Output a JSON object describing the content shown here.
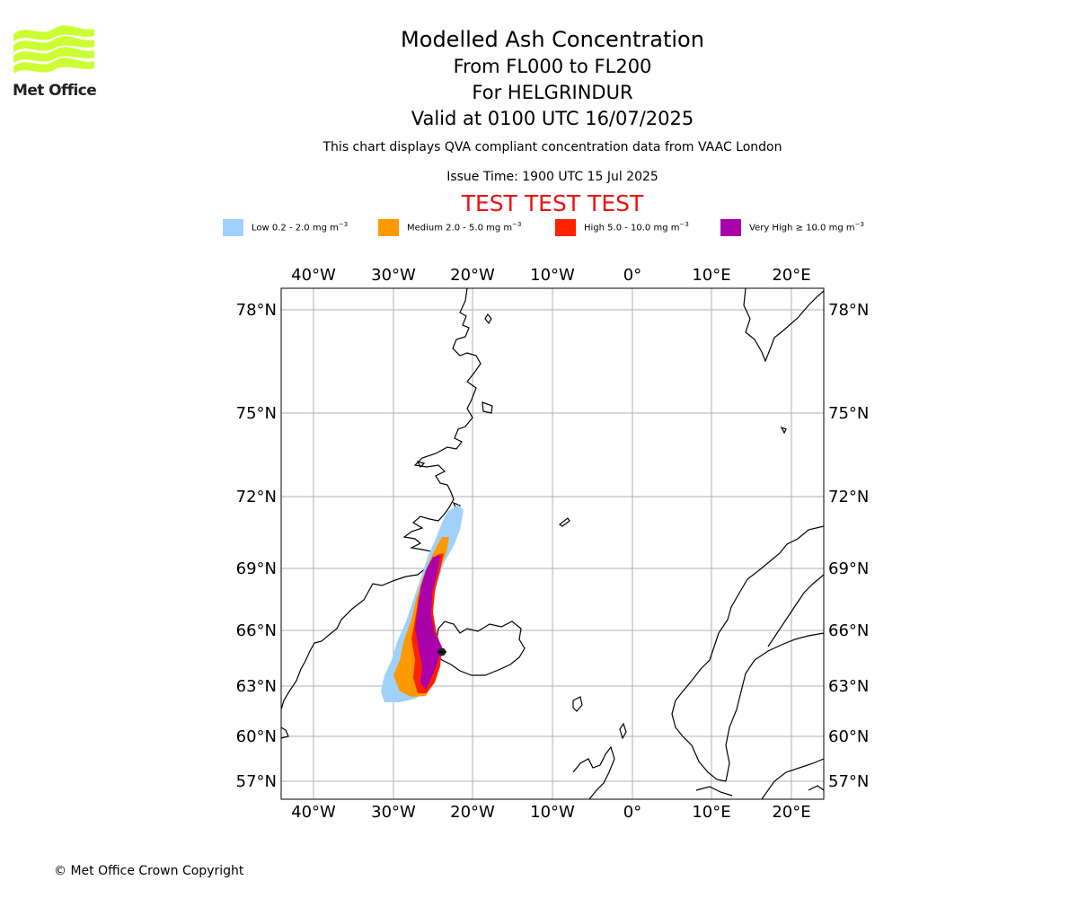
{
  "logo": {
    "text": "Met Office",
    "color": "#ccff33"
  },
  "title": {
    "line1": "Modelled Ash Concentration",
    "line2": "From FL000 to FL200",
    "line3": "For HELGRINDUR",
    "line4": "Valid at 0100 UTC 16/07/2025"
  },
  "subtitle": "This chart displays QVA compliant concentration data from VAAC London",
  "issue_time": "Issue Time: 1900 UTC 15 Jul 2025",
  "test_banner": "TEST TEST TEST",
  "legend": [
    {
      "prefix": "Low 0.2 - 2.0 mg m",
      "color": "#a0d1fa"
    },
    {
      "prefix": "Medium 2.0 - 5.0 mg m",
      "color": "#ff9900"
    },
    {
      "prefix": "High 5.0 - 10.0 mg m",
      "color": "#ff2200"
    },
    {
      "prefix": "Very High ≥ 10.0 mg m",
      "color": "#aa00aa"
    }
  ],
  "legend_exponent": "−3",
  "map": {
    "lon_labels": [
      "40°W",
      "30°W",
      "20°W",
      "10°W",
      "0°",
      "10°E",
      "20°E"
    ],
    "lat_labels": [
      "78°N",
      "75°N",
      "72°N",
      "69°N",
      "66°N",
      "63°N",
      "60°N",
      "57°N"
    ],
    "volcano": "HELGRINDUR"
  },
  "copyright": "© Met Office Crown Copyright"
}
